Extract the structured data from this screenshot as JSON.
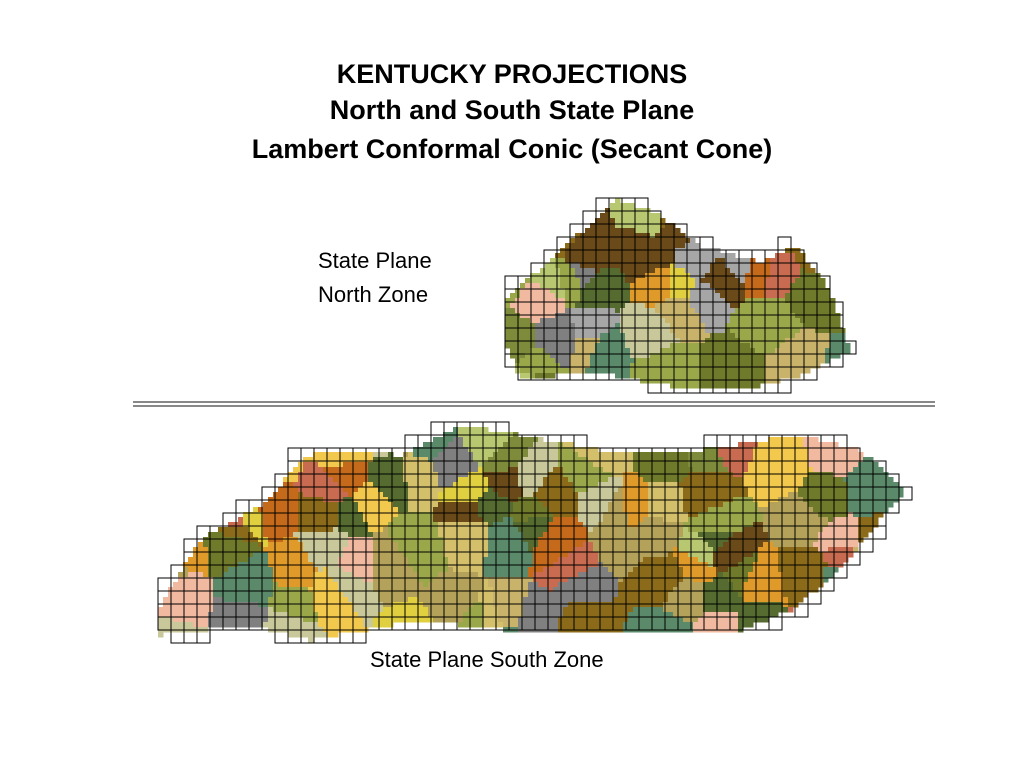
{
  "header": {
    "title_lines": [
      "KENTUCKY PROJECTIONS",
      "North and South State Plane",
      "Lambert Conformal Conic (Secant Cone)"
    ]
  },
  "maps": {
    "north_label_lines": [
      "State Plane",
      "North Zone"
    ],
    "south_label": "State Plane South Zone"
  }
}
